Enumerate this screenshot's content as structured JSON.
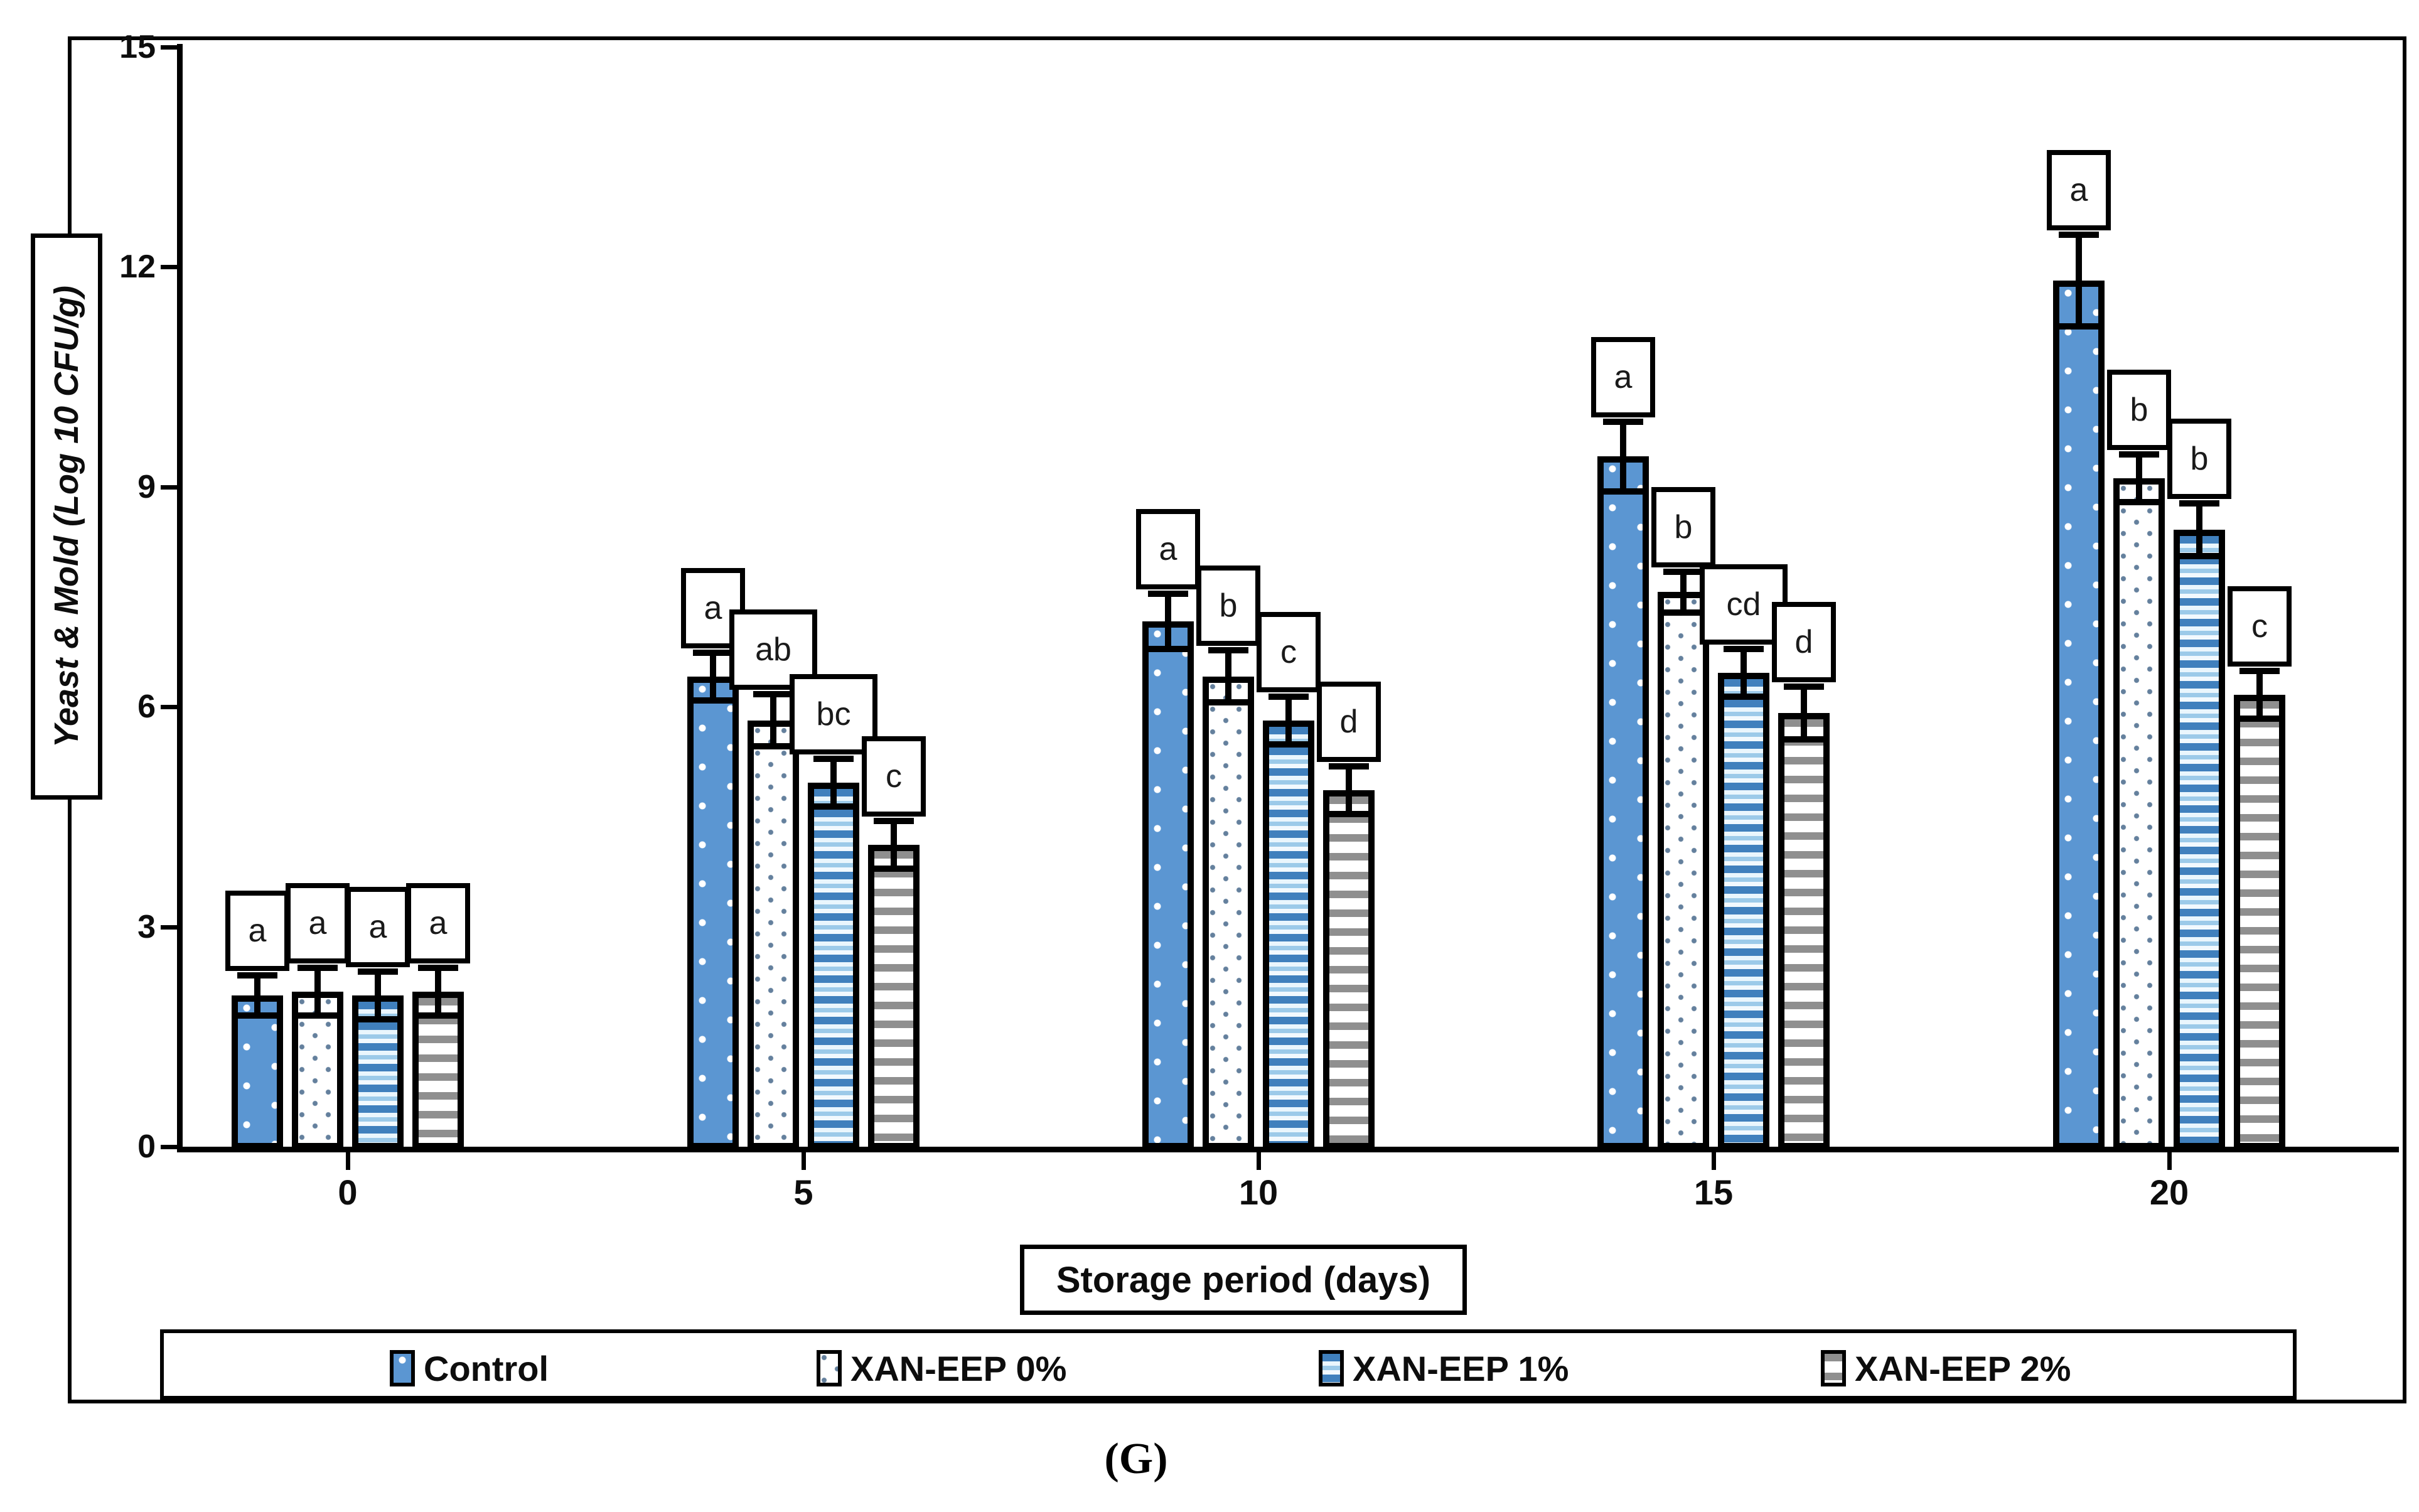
{
  "figure": {
    "caption": "(G)"
  },
  "axes": {
    "y_title": "Yeast & Mold (Log 10 CFU/g)",
    "x_title": "Storage period (days)",
    "y_tick_values": [
      15,
      12,
      9,
      6,
      3,
      0
    ]
  },
  "legend": {
    "items": [
      "Control",
      "XAN-EEP 0%",
      "XAN-EEP 1%",
      "XAN-EEP 2%"
    ]
  },
  "colors": {
    "control_blue": "#5b96d2",
    "dot_gray_blue": "#64809d",
    "stripe_blue": "#4080bd",
    "stripe_gray": "#8f8f8f",
    "border_black": "#000000"
  },
  "chart_data": {
    "type": "bar",
    "title": "",
    "xlabel": "Storage period (days)",
    "ylabel": "Yeast & Mold (Log 10 CFU/g)",
    "ylim": [
      0,
      15
    ],
    "ytick_step": 3,
    "grid": false,
    "legend_position": "bottom",
    "categories": [
      "0",
      "5",
      "10",
      "15",
      "20"
    ],
    "series": [
      {
        "name": "Control",
        "pattern": "white-dots-on-blue",
        "values": [
          2.1,
          6.45,
          7.2,
          9.45,
          11.85
        ],
        "errors": [
          0.25,
          0.3,
          0.35,
          0.45,
          0.6
        ],
        "letters": [
          "a",
          "a",
          "a",
          "a",
          "a"
        ]
      },
      {
        "name": "XAN-EEP 0%",
        "pattern": "gray-blue-dots-on-white",
        "values": [
          2.15,
          5.85,
          6.45,
          7.6,
          9.15
        ],
        "errors": [
          0.3,
          0.33,
          0.33,
          0.25,
          0.3
        ],
        "letters": [
          "a",
          "ab",
          "b",
          "b",
          "b"
        ]
      },
      {
        "name": "XAN-EEP 1%",
        "pattern": "blue-horizontal-stripes",
        "values": [
          2.1,
          5.0,
          5.85,
          6.5,
          8.45
        ],
        "errors": [
          0.3,
          0.3,
          0.3,
          0.3,
          0.33
        ],
        "letters": [
          "a",
          "bc",
          "c",
          "cd",
          "b"
        ]
      },
      {
        "name": "XAN-EEP 2%",
        "pattern": "gray-horizontal-stripes",
        "values": [
          2.15,
          4.15,
          4.9,
          5.95,
          6.2
        ],
        "errors": [
          0.3,
          0.3,
          0.3,
          0.33,
          0.3
        ],
        "letters": [
          "a",
          "c",
          "d",
          "d",
          "c"
        ]
      }
    ]
  }
}
